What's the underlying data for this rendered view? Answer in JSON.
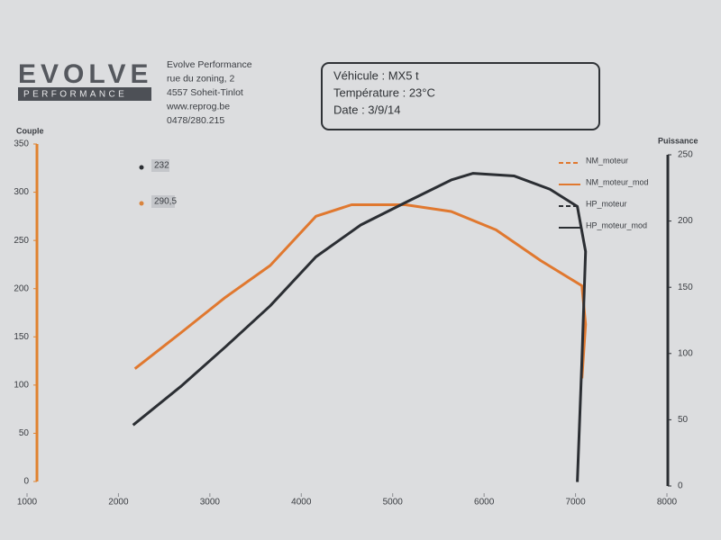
{
  "header": {
    "logo": "EVOLVE",
    "logo_sub": "PERFORMANCE",
    "company": [
      "Evolve Performance",
      "rue du zoning, 2",
      "4557 Soheit-Tinlot",
      "www.reprog.be",
      "0478/280.215"
    ],
    "vehicle_box": [
      "Véhicule :  MX5 t",
      "Température : 23°C",
      "Date :  3/9/14"
    ]
  },
  "chart_data": {
    "type": "line",
    "y_label": "Couple",
    "y2_label": "Puissance",
    "xlim": [
      1000,
      8000
    ],
    "xticks": [
      1000,
      2000,
      3000,
      4000,
      5000,
      6000,
      7000,
      8000
    ],
    "ylim": [
      0,
      350
    ],
    "yticks": [
      0,
      50,
      100,
      150,
      200,
      250,
      300,
      350
    ],
    "y2lim": [
      0,
      250
    ],
    "y2ticks": [
      0,
      50,
      100,
      150,
      200,
      250
    ],
    "y_axis_color": "#e0822f",
    "y2_axis_color": "#2b2e33",
    "series": [
      {
        "name": "NM_moteur",
        "color": "#e0782f",
        "dash": true,
        "x": [],
        "values": []
      },
      {
        "name": "NM_moteur_mod",
        "color": "#e0782f",
        "dash": false,
        "x": [
          2180,
          2680,
          3170,
          3660,
          4160,
          4550,
          5140,
          5640,
          6130,
          6620,
          7070,
          7110,
          7070
        ],
        "values": [
          117,
          154,
          191,
          224,
          275,
          287,
          287,
          280,
          261,
          229,
          203,
          163,
          107
        ]
      },
      {
        "name": "HP_moteur",
        "color": "#2b2e33",
        "dash": true,
        "axis": "y2",
        "x": [],
        "values": []
      },
      {
        "name": "HP_moteur_mod",
        "color": "#2b2e33",
        "dash": false,
        "axis": "y2",
        "x": [
          2160,
          2680,
          3170,
          3660,
          4160,
          4650,
          5140,
          5640,
          5880,
          6330,
          6720,
          7020,
          7110,
          7070,
          7020
        ],
        "values": [
          46,
          75,
          105,
          136,
          173,
          197,
          214,
          231,
          236,
          234,
          224,
          211,
          177,
          95,
          3
        ]
      }
    ],
    "annotations": [
      {
        "text": "232",
        "color": "#2b2e33"
      },
      {
        "text": "290,5",
        "color": "#d9843e"
      }
    ]
  }
}
